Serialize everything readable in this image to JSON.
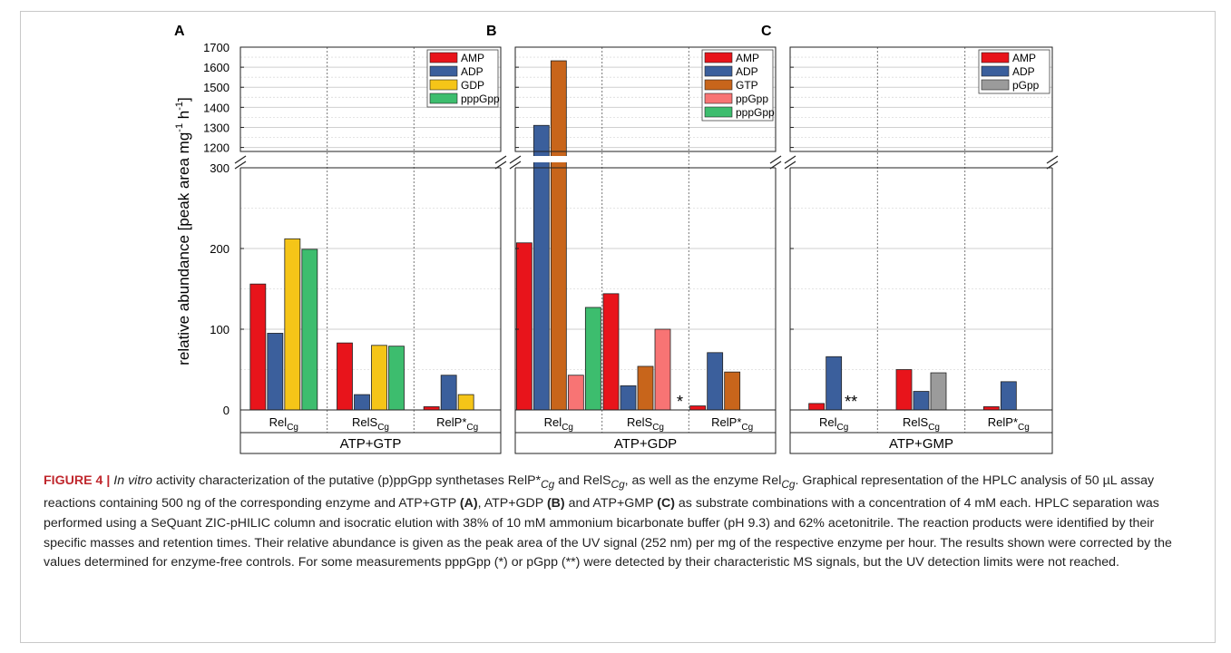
{
  "chart_data": [
    {
      "panel_letter": "A",
      "type": "bar",
      "categories": [
        "Rel_Cg",
        "RelS_Cg",
        "RelP*_Cg"
      ],
      "substrate": "ATP+GTP",
      "ylabel": "relative abundance [peak area mg-1 h-1]",
      "y_lower_range": [
        0,
        300
      ],
      "y_upper_range": [
        1180,
        1700
      ],
      "y_lower_ticks": [
        0,
        100,
        200,
        300
      ],
      "y_upper_ticks": [
        1200,
        1300,
        1400,
        1500,
        1600,
        1700
      ],
      "series": [
        {
          "name": "AMP",
          "color": "#e8141b",
          "values": [
            156,
            83,
            4
          ]
        },
        {
          "name": "ADP",
          "color": "#3b5f9c",
          "values": [
            95,
            19,
            43
          ]
        },
        {
          "name": "GDP",
          "color": "#f5c518",
          "values": [
            212,
            80,
            19
          ]
        },
        {
          "name": "pppGpp",
          "color": "#3dbd6e",
          "values": [
            199,
            79,
            null
          ]
        }
      ],
      "annotations": []
    },
    {
      "panel_letter": "B",
      "type": "bar",
      "categories": [
        "Rel_Cg",
        "RelS_Cg",
        "RelP*_Cg"
      ],
      "substrate": "ATP+GDP",
      "y_lower_range": [
        0,
        300
      ],
      "y_upper_range": [
        1180,
        1700
      ],
      "series": [
        {
          "name": "AMP",
          "color": "#e8141b",
          "values": [
            207,
            144,
            5
          ]
        },
        {
          "name": "ADP",
          "color": "#3b5f9c",
          "values": [
            1310,
            30,
            71
          ]
        },
        {
          "name": "GTP",
          "color": "#c8651b",
          "values": [
            1632,
            54,
            47
          ]
        },
        {
          "name": "ppGpp",
          "color": "#f87474",
          "values": [
            43,
            100,
            null
          ]
        },
        {
          "name": "pppGpp",
          "color": "#3dbd6e",
          "values": [
            127,
            null,
            null
          ]
        }
      ],
      "annotations": [
        {
          "text": "*",
          "category": 1,
          "series": 4
        }
      ]
    },
    {
      "panel_letter": "C",
      "type": "bar",
      "categories": [
        "Rel_Cg",
        "RelS_Cg",
        "RelP*_Cg"
      ],
      "substrate": "ATP+GMP",
      "y_lower_range": [
        0,
        300
      ],
      "y_upper_range": [
        1180,
        1700
      ],
      "series": [
        {
          "name": "AMP",
          "color": "#e8141b",
          "values": [
            8,
            50,
            4
          ]
        },
        {
          "name": "ADP",
          "color": "#3b5f9c",
          "values": [
            66,
            23,
            35
          ]
        },
        {
          "name": "pGpp",
          "color": "#9b9b9b",
          "values": [
            null,
            46,
            null
          ]
        }
      ],
      "annotations": [
        {
          "text": "**",
          "category": 0,
          "series": 2
        }
      ]
    }
  ],
  "category_labels": [
    {
      "base": "Rel",
      "sub": "Cg"
    },
    {
      "base": "RelS",
      "sub": "Cg"
    },
    {
      "base": "RelP*",
      "sub": "Cg"
    }
  ],
  "ylabel_parts": {
    "main": "relative abundance [peak area mg",
    "sup1": "-1",
    "mid": " h",
    "sup2": "-1",
    "end": "]"
  },
  "caption": {
    "label": "FIGURE 4 | ",
    "html": "<i>In vitro</i> activity characterization of the putative (p)ppGpp synthetases RelP*<sub><i>Cg</i></sub> and RelS<sub><i>Cg</i></sub>, as well as the enzyme Rel<sub><i>Cg</i></sub>. Graphical representation of the HPLC analysis of 50 µL assay reactions containing 500 ng of the corresponding enzyme and ATP+GTP <b>(A)</b>, ATP+GDP <b>(B)</b> and ATP+GMP <b>(C)</b> as substrate combinations with a concentration of 4 mM each. HPLC separation was performed using a SeQuant ZIC-pHILIC column and isocratic elution with 38% of 10 mM ammonium bicarbonate buffer (pH 9.3) and 62% acetonitrile. The reaction products were identified by their specific masses and retention times. Their relative abundance is given as the peak area of the UV signal (252 nm) per mg of the respective enzyme per hour. The results shown were corrected by the values determined for enzyme-free controls. For some measurements pppGpp (*) or pGpp (**) were detected by their characteristic MS signals, but the UV detection limits were not reached."
  }
}
